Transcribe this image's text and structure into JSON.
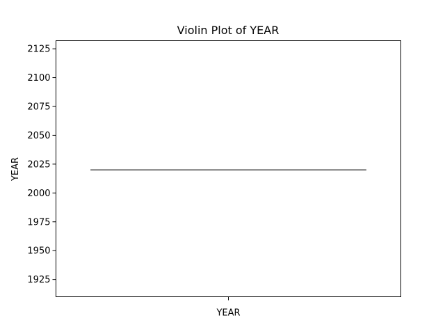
{
  "chart_data": {
    "type": "violin",
    "title": "Violin Plot of YEAR",
    "xlabel": "",
    "ylabel": "YEAR",
    "categories": [
      "YEAR"
    ],
    "series": [
      {
        "values": [
          2020
        ]
      }
    ],
    "ylim": [
      1910,
      2132
    ],
    "yticks": [
      1925,
      1950,
      1975,
      2000,
      2025,
      2050,
      2075,
      2100,
      2125
    ],
    "grid": false,
    "colors": {
      "line": "#333333",
      "axis": "#000000"
    }
  }
}
